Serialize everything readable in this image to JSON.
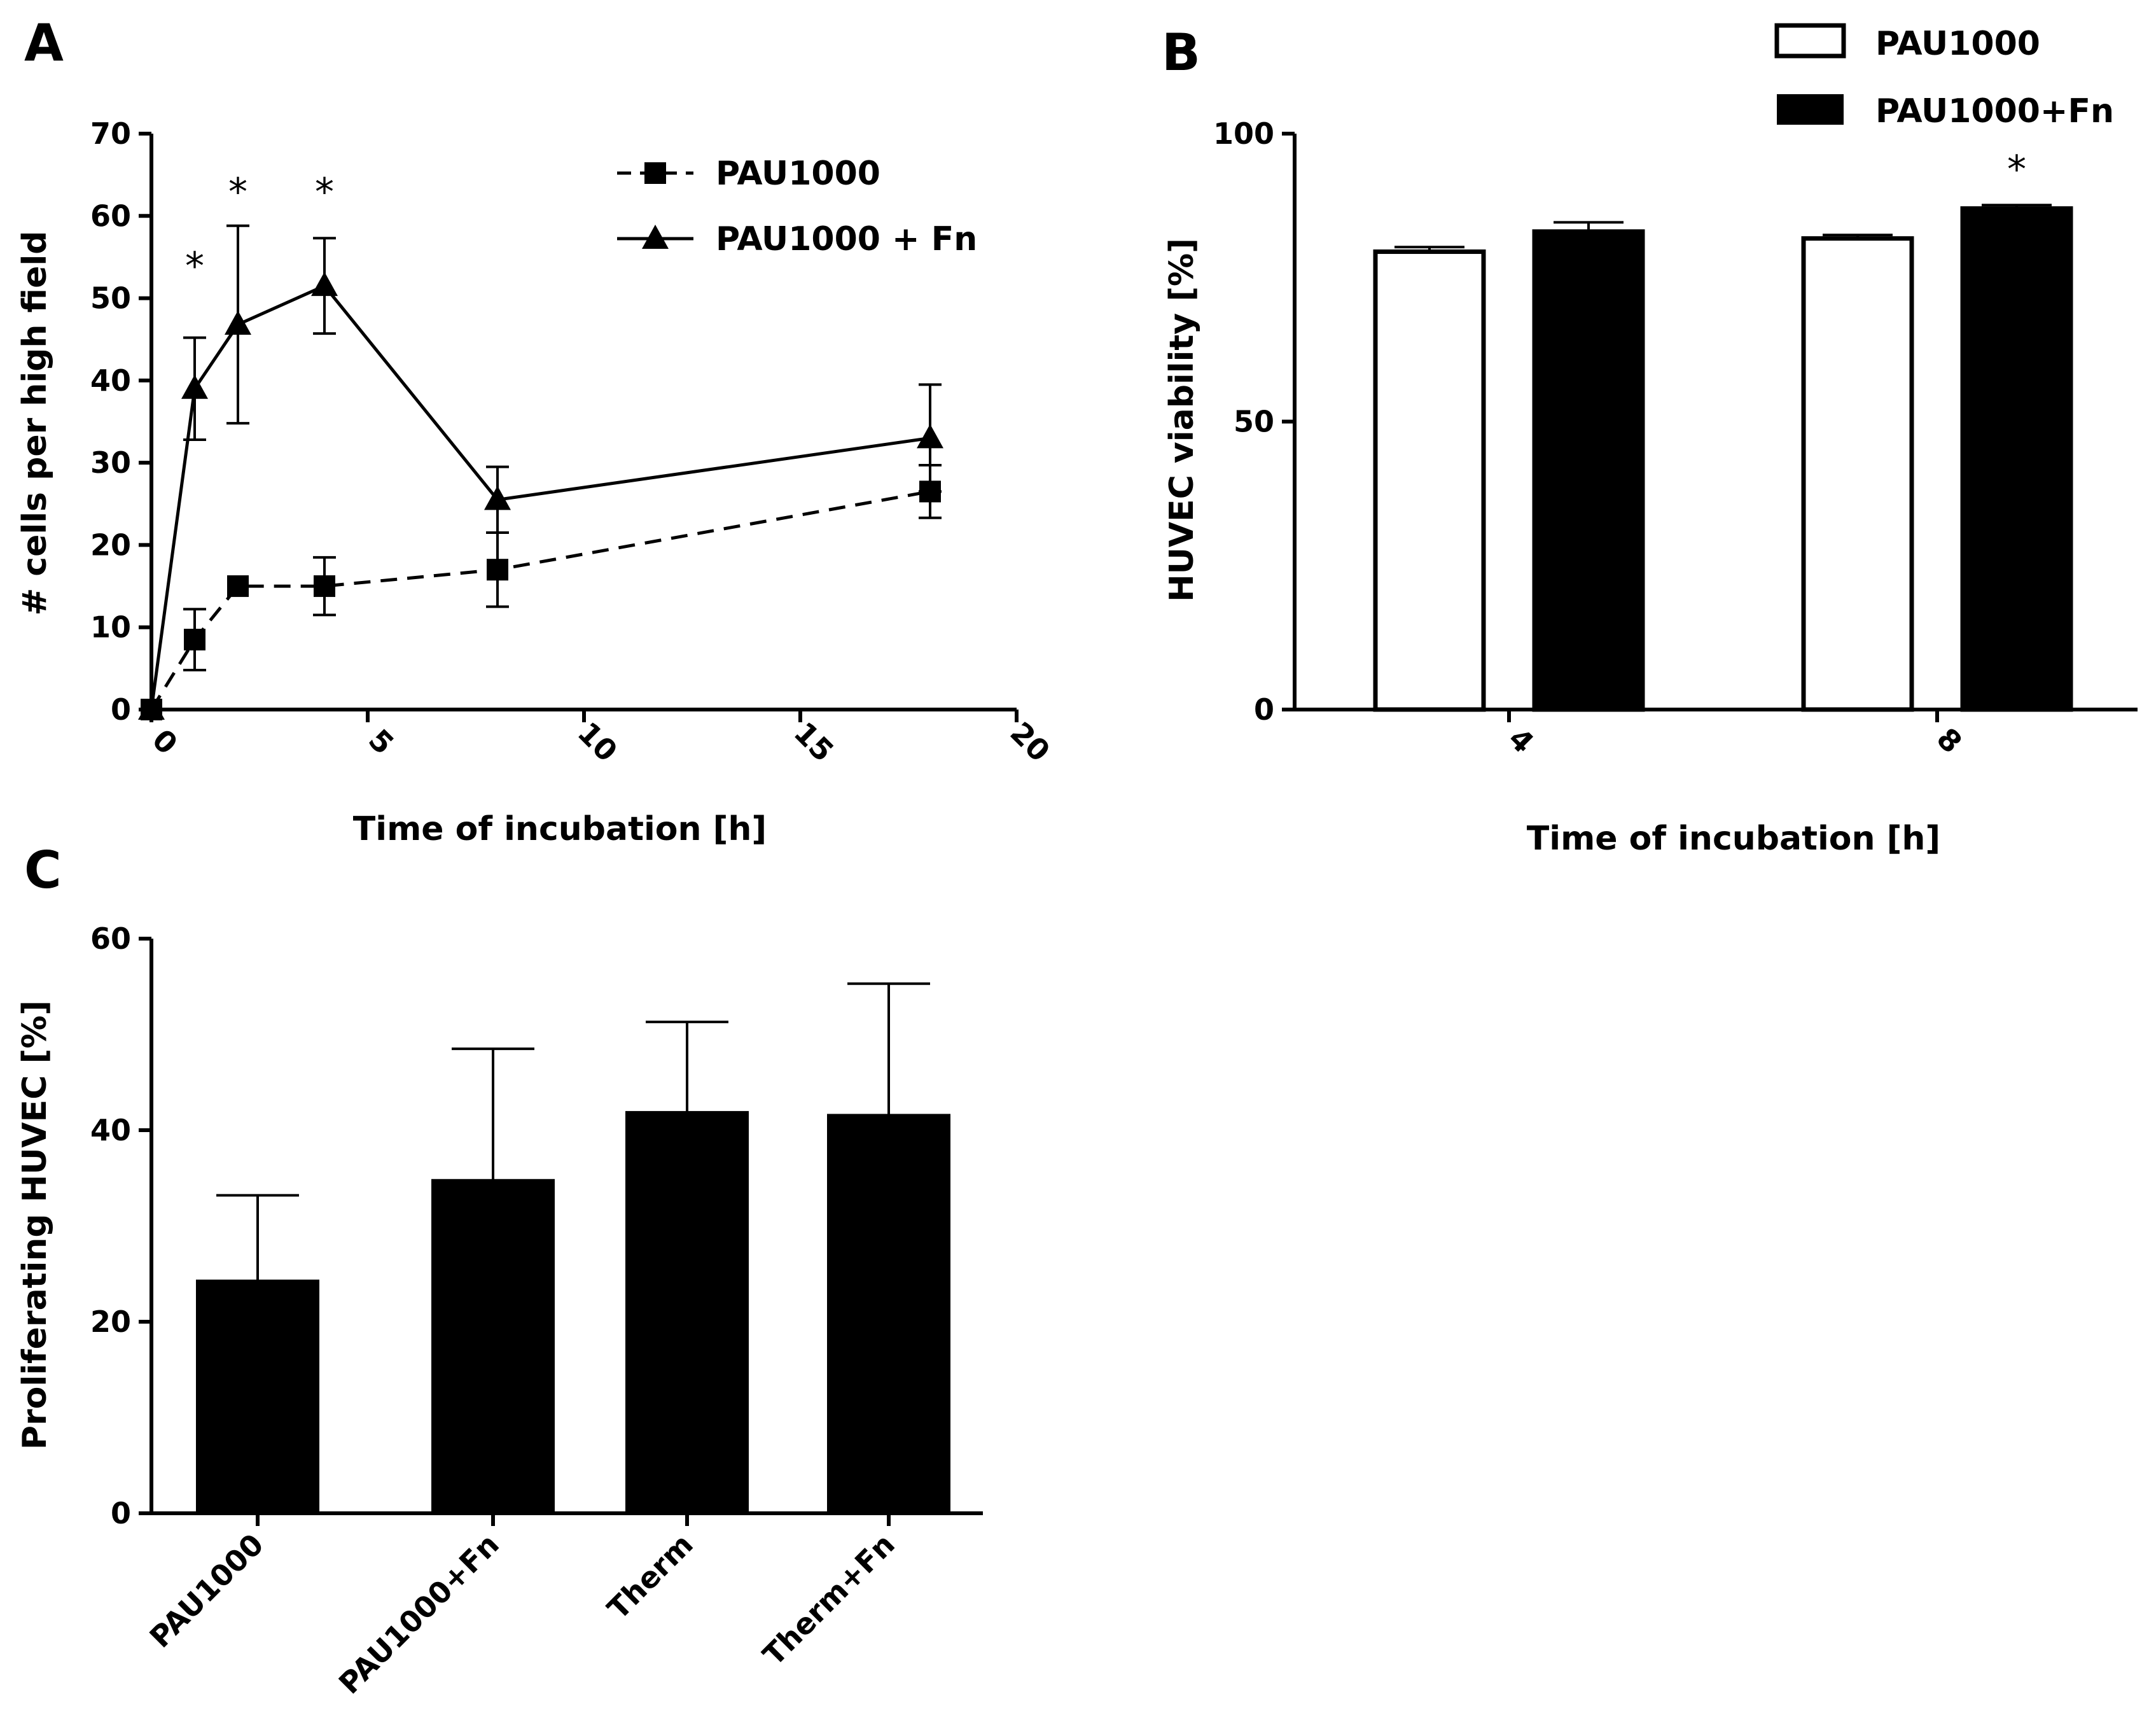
{
  "figure": {
    "panel_labels": [
      "A",
      "B",
      "C"
    ]
  },
  "chart_data": [
    {
      "panel": "A",
      "type": "line",
      "xlabel": "Time of incubation [h]",
      "ylabel": "# cells per high field",
      "xlim": [
        0,
        20
      ],
      "ylim": [
        0,
        70
      ],
      "xticks": [
        0,
        5,
        10,
        15,
        20
      ],
      "yticks": [
        0,
        10,
        20,
        30,
        40,
        50,
        60,
        70
      ],
      "legend_position": "top-right",
      "series": [
        {
          "name": "PAU1000",
          "line_style": "dashed",
          "marker": "square",
          "x": [
            0,
            1,
            2,
            4,
            8,
            18
          ],
          "y": [
            0,
            8.5,
            15,
            15,
            17,
            26.5
          ],
          "error": [
            0,
            3.7,
            0,
            3.5,
            4.5,
            3.2
          ]
        },
        {
          "name": "PAU1000 + Fn",
          "line_style": "solid",
          "marker": "triangle",
          "x": [
            0,
            1,
            2,
            4,
            8,
            18
          ],
          "y": [
            0,
            39,
            46.8,
            51.5,
            25.5,
            33
          ],
          "error": [
            0,
            6.2,
            12,
            5.8,
            4,
            6.5
          ]
        }
      ],
      "annotations": [
        {
          "text": "*",
          "x": 1,
          "y": 54.5
        },
        {
          "text": "*",
          "x": 2,
          "y": 63.5
        },
        {
          "text": "*",
          "x": 4,
          "y": 63.5
        }
      ]
    },
    {
      "panel": "B",
      "type": "bar",
      "xlabel": "Time of incubation [h]",
      "ylabel": "HUVEC viability [%]",
      "ylim": [
        0,
        100
      ],
      "yticks": [
        0,
        50,
        100
      ],
      "categories": [
        "4",
        "8"
      ],
      "legend_position": "top-right",
      "series": [
        {
          "name": "PAU1000",
          "fill": "#ffffff",
          "values": [
            79.5,
            81.8
          ],
          "error": [
            0.8,
            0.6
          ]
        },
        {
          "name": "PAU1000+Fn",
          "fill": "#000000",
          "values": [
            83,
            87
          ],
          "error": [
            1.6,
            0.6
          ]
        }
      ],
      "annotations": [
        {
          "text": "*",
          "category": "8",
          "series": "PAU1000+Fn",
          "y": 94
        }
      ]
    },
    {
      "panel": "C",
      "type": "bar",
      "xlabel": "",
      "ylabel": "Proliferating HUVEC [%]",
      "ylim": [
        0,
        60
      ],
      "yticks": [
        0,
        20,
        40,
        60
      ],
      "categories": [
        "PAU1000",
        "PAU1000+Fn",
        "Therm",
        "Therm+Fn"
      ],
      "series": [
        {
          "name": "",
          "fill": "#000000",
          "values": [
            24.2,
            34.7,
            41.8,
            41.5
          ],
          "error": [
            9,
            13.8,
            9.5,
            13.8
          ]
        }
      ]
    }
  ]
}
